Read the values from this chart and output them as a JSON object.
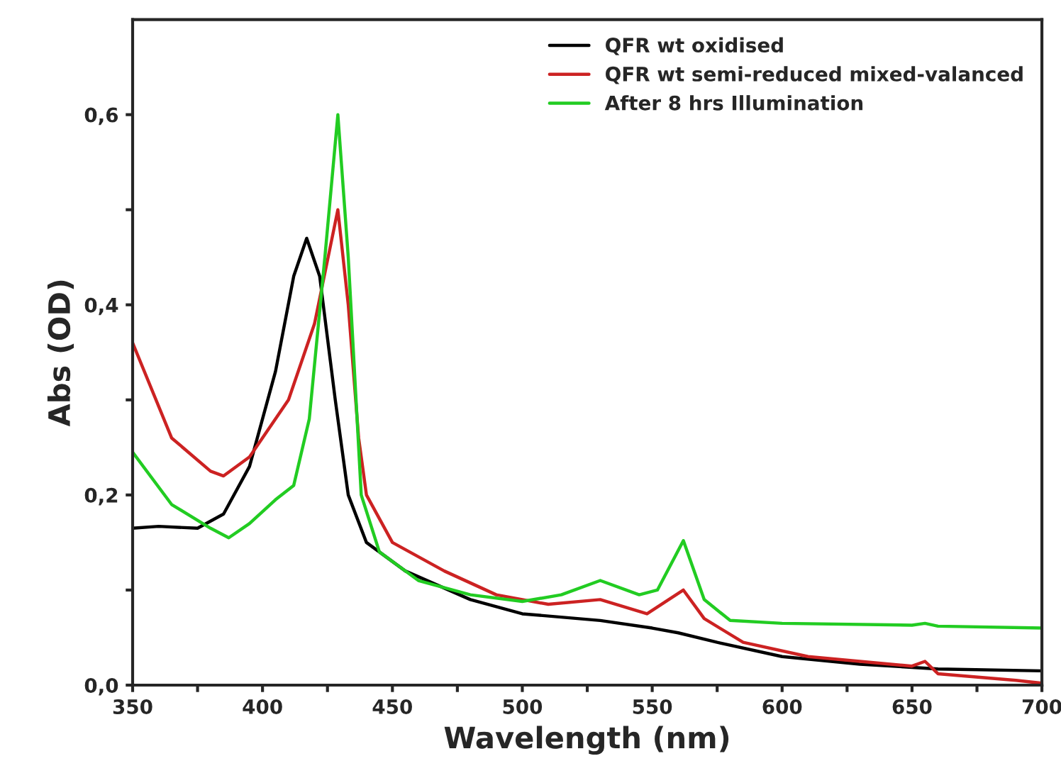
{
  "chart_data": {
    "type": "line",
    "xlabel": "Wavelength (nm)",
    "ylabel": "Abs (OD)",
    "xlim": [
      350,
      700
    ],
    "ylim": [
      0,
      0.7
    ],
    "xticks": [
      350,
      {
        "value": 375,
        "label": null
      },
      400,
      {
        "value": 425,
        "label": null
      },
      450,
      {
        "value": 475,
        "label": null
      },
      500,
      {
        "value": 525,
        "label": null
      },
      550,
      {
        "value": 575,
        "label": null
      },
      600,
      {
        "value": 625,
        "label": null
      },
      650,
      {
        "value": 675,
        "label": null
      },
      700
    ],
    "yticks": [
      {
        "value": 0,
        "label": "0,0"
      },
      {
        "value": 0.1,
        "label": null
      },
      {
        "value": 0.2,
        "label": "0,2"
      },
      {
        "value": 0.3,
        "label": null
      },
      {
        "value": 0.4,
        "label": "0,4"
      },
      {
        "value": 0.5,
        "label": null
      },
      {
        "value": 0.6,
        "label": "0,6"
      }
    ],
    "grid": false,
    "legend": "top right",
    "line_style": "solid",
    "marker": "none",
    "series": [
      {
        "name": "QFR wt oxidised",
        "color": "#000000",
        "x": [
          350,
          360,
          375,
          385,
          395,
          405,
          412,
          417,
          422,
          428,
          433,
          440,
          455,
          480,
          500,
          530,
          550,
          560,
          575,
          600,
          630,
          660,
          700
        ],
        "values": [
          0.165,
          0.167,
          0.165,
          0.18,
          0.23,
          0.33,
          0.43,
          0.47,
          0.43,
          0.3,
          0.2,
          0.15,
          0.12,
          0.09,
          0.075,
          0.068,
          0.06,
          0.055,
          0.045,
          0.03,
          0.022,
          0.017,
          0.015
        ]
      },
      {
        "name": "QFR wt semi-reduced mixed-valanced",
        "color": "#cc2222",
        "x": [
          350,
          365,
          380,
          385,
          395,
          410,
          420,
          426,
          429,
          433,
          437,
          440,
          450,
          470,
          490,
          510,
          530,
          548,
          562,
          570,
          585,
          610,
          650,
          655,
          660,
          690,
          700
        ],
        "values": [
          0.36,
          0.26,
          0.225,
          0.22,
          0.24,
          0.3,
          0.38,
          0.46,
          0.5,
          0.4,
          0.26,
          0.2,
          0.15,
          0.12,
          0.095,
          0.085,
          0.09,
          0.075,
          0.1,
          0.07,
          0.045,
          0.03,
          0.02,
          0.025,
          0.012,
          0.005,
          0.002
        ]
      },
      {
        "name": "After 8 hrs Illumination",
        "color": "#22cc22",
        "x": [
          350,
          365,
          380,
          387,
          395,
          405,
          412,
          418,
          424,
          429,
          433,
          438,
          445,
          460,
          480,
          500,
          515,
          530,
          545,
          552,
          562,
          570,
          580,
          600,
          650,
          655,
          660,
          700
        ],
        "values": [
          0.245,
          0.19,
          0.165,
          0.155,
          0.17,
          0.195,
          0.21,
          0.28,
          0.45,
          0.6,
          0.45,
          0.2,
          0.14,
          0.11,
          0.095,
          0.088,
          0.095,
          0.11,
          0.095,
          0.1,
          0.152,
          0.09,
          0.068,
          0.065,
          0.063,
          0.065,
          0.062,
          0.06
        ]
      }
    ]
  }
}
